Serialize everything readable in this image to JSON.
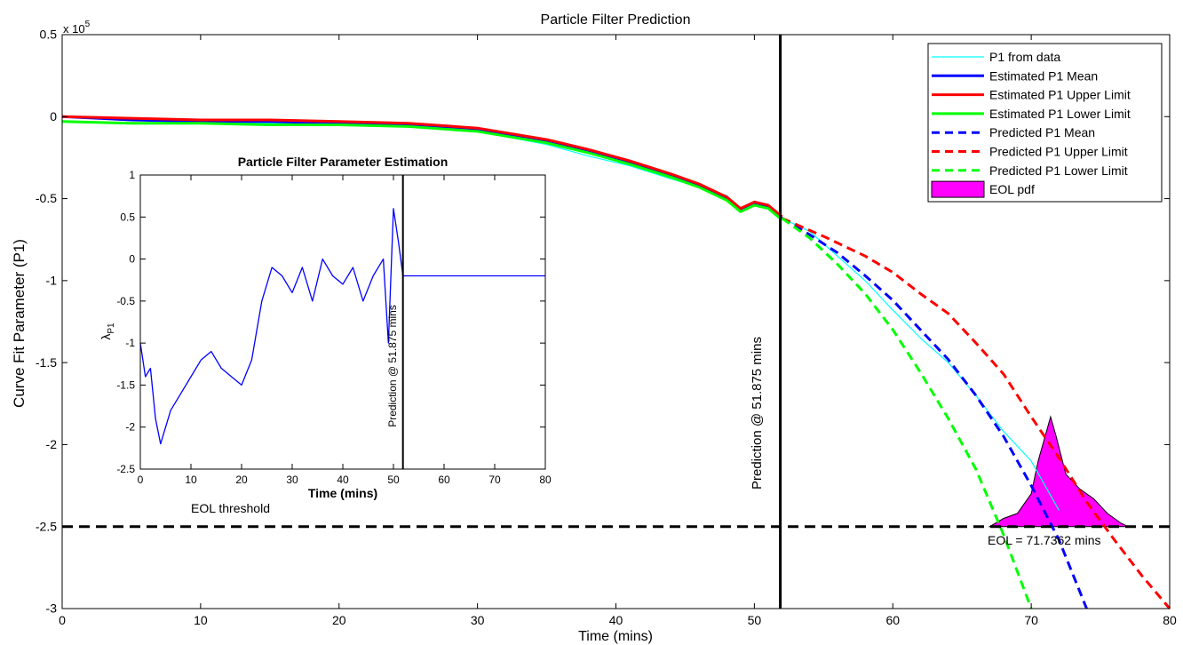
{
  "chart_data": [
    {
      "type": "line",
      "title": "Particle Filter Prediction",
      "xlabel": "Time (mins)",
      "ylabel": "Curve Fit Parameter (P1)",
      "y_multiplier": "x 10",
      "y_exponent": "5",
      "xlim": [
        0,
        80
      ],
      "ylim": [
        -3,
        0.5
      ],
      "xticks": [
        "0",
        "10",
        "20",
        "30",
        "40",
        "50",
        "60",
        "70",
        "80"
      ],
      "yticks": [
        "0.5",
        "0",
        "-0.5",
        "-1",
        "-1.5",
        "-2",
        "-2.5",
        "-3"
      ],
      "grid": false,
      "legend_position": "top-right",
      "legend": [
        {
          "label": "P1 from data",
          "color": "#00ffff",
          "style": "thin"
        },
        {
          "label": "Estimated P1 Mean",
          "color": "#0000ff",
          "style": "solid"
        },
        {
          "label": "Estimated P1 Upper Limit",
          "color": "#ff0000",
          "style": "solid"
        },
        {
          "label": "Estimated P1 Lower Limit",
          "color": "#00ff00",
          "style": "solid"
        },
        {
          "label": "Predicted P1 Mean",
          "color": "#0000ff",
          "style": "dashed"
        },
        {
          "label": "Predicted P1 Upper Limit",
          "color": "#ff0000",
          "style": "dashed"
        },
        {
          "label": "Predicted P1 Lower Limit",
          "color": "#00ff00",
          "style": "dashed"
        },
        {
          "label": "EOL pdf",
          "color": "#ff00ff",
          "style": "patch"
        }
      ],
      "series": [
        {
          "name": "P1 from data",
          "color": "#00ffff",
          "x": [
            0,
            5,
            10,
            15,
            20,
            25,
            30,
            35,
            38,
            41,
            44,
            46,
            48,
            49,
            50,
            51,
            52,
            54,
            56,
            58,
            60,
            62,
            64,
            66,
            68,
            70,
            72
          ],
          "y": [
            0,
            -0.02,
            -0.03,
            -0.04,
            -0.05,
            -0.06,
            -0.09,
            -0.17,
            -0.24,
            -0.3,
            -0.38,
            -0.43,
            -0.48,
            -0.56,
            -0.52,
            -0.55,
            -0.62,
            -0.7,
            -0.85,
            -1.0,
            -1.18,
            -1.35,
            -1.5,
            -1.7,
            -1.92,
            -2.1,
            -2.4
          ]
        },
        {
          "name": "Estimated P1 Mean",
          "color": "#0000ff",
          "x": [
            0,
            5,
            10,
            15,
            20,
            25,
            30,
            35,
            38,
            41,
            44,
            46,
            48,
            49,
            50,
            51,
            52
          ],
          "y": [
            0,
            -0.02,
            -0.03,
            -0.03,
            -0.04,
            -0.05,
            -0.08,
            -0.15,
            -0.21,
            -0.28,
            -0.36,
            -0.42,
            -0.5,
            -0.57,
            -0.53,
            -0.55,
            -0.62
          ]
        },
        {
          "name": "Estimated P1 Upper Limit",
          "color": "#ff0000",
          "x": [
            0,
            5,
            10,
            15,
            20,
            25,
            30,
            35,
            38,
            41,
            44,
            46,
            48,
            49,
            50,
            51,
            52
          ],
          "y": [
            0,
            -0.01,
            -0.02,
            -0.02,
            -0.03,
            -0.04,
            -0.07,
            -0.14,
            -0.2,
            -0.27,
            -0.35,
            -0.41,
            -0.49,
            -0.56,
            -0.52,
            -0.54,
            -0.61
          ]
        },
        {
          "name": "Estimated P1 Lower Limit",
          "color": "#00ff00",
          "x": [
            0,
            5,
            10,
            15,
            20,
            25,
            30,
            35,
            38,
            41,
            44,
            46,
            48,
            49,
            50,
            51,
            52
          ],
          "y": [
            -0.03,
            -0.04,
            -0.04,
            -0.05,
            -0.05,
            -0.06,
            -0.09,
            -0.16,
            -0.22,
            -0.29,
            -0.37,
            -0.43,
            -0.51,
            -0.58,
            -0.54,
            -0.56,
            -0.63
          ]
        },
        {
          "name": "Predicted P1 Mean",
          "color": "#0000ff",
          "dashed": true,
          "x": [
            52,
            54,
            56,
            58,
            60,
            62,
            64,
            66,
            68,
            70,
            72,
            74
          ],
          "y": [
            -0.62,
            -0.72,
            -0.83,
            -0.97,
            -1.12,
            -1.3,
            -1.48,
            -1.7,
            -1.95,
            -2.25,
            -2.58,
            -3.0
          ]
        },
        {
          "name": "Predicted P1 Upper Limit",
          "color": "#ff0000",
          "dashed": true,
          "x": [
            52,
            55,
            58,
            60,
            62,
            64,
            66,
            68,
            70,
            72,
            74,
            76,
            78,
            80
          ],
          "y": [
            -0.62,
            -0.73,
            -0.85,
            -0.95,
            -1.08,
            -1.2,
            -1.38,
            -1.57,
            -1.83,
            -2.08,
            -2.35,
            -2.58,
            -2.8,
            -3.0
          ]
        },
        {
          "name": "Predicted P1 Lower Limit",
          "color": "#00ff00",
          "dashed": true,
          "x": [
            52,
            54,
            56,
            58,
            60,
            62,
            64,
            66,
            68,
            70
          ],
          "y": [
            -0.62,
            -0.74,
            -0.9,
            -1.08,
            -1.3,
            -1.56,
            -1.84,
            -2.15,
            -2.55,
            -3.0
          ]
        }
      ],
      "eol_pdf": {
        "baseline": -2.5,
        "x": [
          67,
          68,
          69,
          70,
          70.5,
          71,
          71.4,
          71.8,
          72.5,
          73.5,
          74.5,
          75.5,
          76.5,
          77
        ],
        "y": [
          -2.5,
          -2.45,
          -2.42,
          -2.3,
          -2.1,
          -1.95,
          -1.83,
          -1.95,
          -2.18,
          -2.27,
          -2.33,
          -2.42,
          -2.48,
          -2.5
        ]
      },
      "eol_threshold": -2.5,
      "prediction_time": 51.875,
      "annotations": {
        "prediction_label": "Prediction @ 51.875 mins",
        "eol_label": "EOL = 71.7362 mins",
        "threshold_label": "EOL threshold"
      }
    },
    {
      "type": "line",
      "title": "Particle Filter Parameter Estimation",
      "xlabel": "Time (mins)",
      "ylabel_main": "λ",
      "ylabel_sub": "P1",
      "xlim": [
        0,
        80
      ],
      "ylim": [
        -2.5,
        1
      ],
      "xticks": [
        "0",
        "10",
        "20",
        "30",
        "40",
        "50",
        "60",
        "70",
        "80"
      ],
      "yticks": [
        "1",
        "0.5",
        "0",
        "-0.5",
        "-1",
        "-1.5",
        "-2",
        "-2.5"
      ],
      "grid": false,
      "prediction_time": 51.875,
      "prediction_label": "Prediction @ 51.875 mins",
      "series": [
        {
          "name": "λP1 estimate",
          "color": "#0000ff",
          "x": [
            0,
            1,
            2,
            3,
            4,
            5,
            6,
            8,
            10,
            12,
            14,
            16,
            18,
            20,
            22,
            24,
            26,
            28,
            30,
            32,
            34,
            36,
            38,
            40,
            42,
            44,
            46,
            48,
            49,
            50,
            51,
            51.875
          ],
          "y": [
            -1.0,
            -1.4,
            -1.3,
            -1.9,
            -2.2,
            -2.0,
            -1.8,
            -1.6,
            -1.4,
            -1.2,
            -1.1,
            -1.3,
            -1.4,
            -1.5,
            -1.2,
            -0.5,
            -0.1,
            -0.2,
            -0.4,
            -0.1,
            -0.5,
            0.0,
            -0.2,
            -0.3,
            -0.1,
            -0.5,
            -0.2,
            0.0,
            -1.0,
            0.6,
            0.2,
            -0.2
          ]
        },
        {
          "name": "λP1 hold",
          "color": "#0000ff",
          "x": [
            51.875,
            80
          ],
          "y": [
            -0.2,
            -0.2
          ]
        }
      ]
    }
  ]
}
